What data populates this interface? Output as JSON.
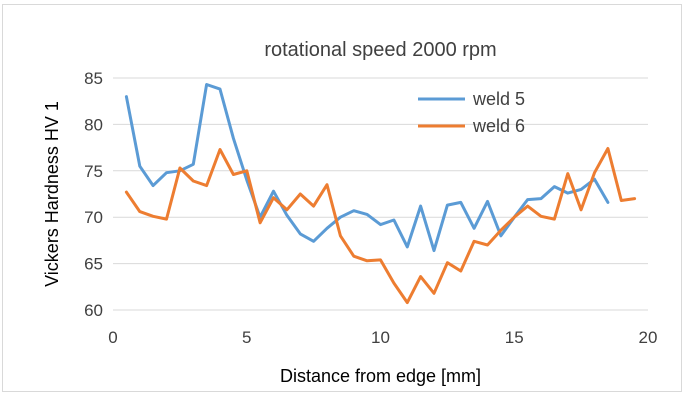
{
  "chart_data": {
    "type": "line",
    "title": "rotational speed 2000 rpm",
    "xlabel": "Distance from edge [mm]",
    "ylabel": "Vickers Hardness HV 1",
    "xlim": [
      0,
      20
    ],
    "ylim": [
      60,
      85
    ],
    "xticks": [
      "0",
      "5",
      "10",
      "15",
      "20"
    ],
    "yticks": [
      "60",
      "65",
      "70",
      "75",
      "80",
      "85"
    ],
    "grid": "horizontal",
    "legend_position": "top-right",
    "series": [
      {
        "name": "weld 5",
        "color": "#5b9bd5",
        "x": [
          0.5,
          1,
          1.5,
          2,
          2.5,
          3,
          3.5,
          4,
          4.5,
          5,
          5.5,
          6,
          6.5,
          7,
          7.5,
          8,
          8.5,
          9,
          9.5,
          10,
          10.5,
          11,
          11.5,
          12,
          12.5,
          13,
          13.5,
          14,
          14.5,
          15,
          15.5,
          16,
          16.5,
          17,
          17.5,
          18,
          18.5
        ],
        "y": [
          83,
          75.5,
          73.4,
          74.8,
          75,
          75.7,
          84.3,
          83.8,
          78.5,
          74,
          70,
          72.8,
          70.2,
          68.2,
          67.4,
          68.8,
          70,
          70.7,
          70.3,
          69.2,
          69.7,
          66.8,
          71.2,
          66.4,
          71.3,
          71.6,
          68.8,
          71.7,
          68,
          70,
          71.9,
          72,
          73.3,
          72.6,
          73,
          74.1,
          71.6
        ]
      },
      {
        "name": "weld 6",
        "color": "#ed7d31",
        "x": [
          0.5,
          1,
          1.5,
          2,
          2.5,
          3,
          3.5,
          4,
          4.5,
          5,
          5.5,
          6,
          6.5,
          7,
          7.5,
          8,
          8.5,
          9,
          9.5,
          10,
          10.5,
          11,
          11.5,
          12,
          12.5,
          13,
          13.5,
          14,
          14.5,
          15,
          15.5,
          16,
          16.5,
          17,
          17.5,
          18,
          18.5,
          19,
          19.5
        ],
        "y": [
          72.7,
          70.6,
          70.1,
          69.8,
          75.3,
          73.9,
          73.4,
          77.3,
          74.6,
          75,
          69.4,
          72.1,
          70.8,
          72.5,
          71.2,
          73.5,
          68,
          65.8,
          65.3,
          65.4,
          62.9,
          60.8,
          63.6,
          61.8,
          65.1,
          64.2,
          67.4,
          67,
          68.6,
          70,
          71.2,
          70.1,
          69.8,
          74.7,
          70.8,
          74.8,
          77.4,
          71.8,
          72
        ]
      }
    ]
  }
}
